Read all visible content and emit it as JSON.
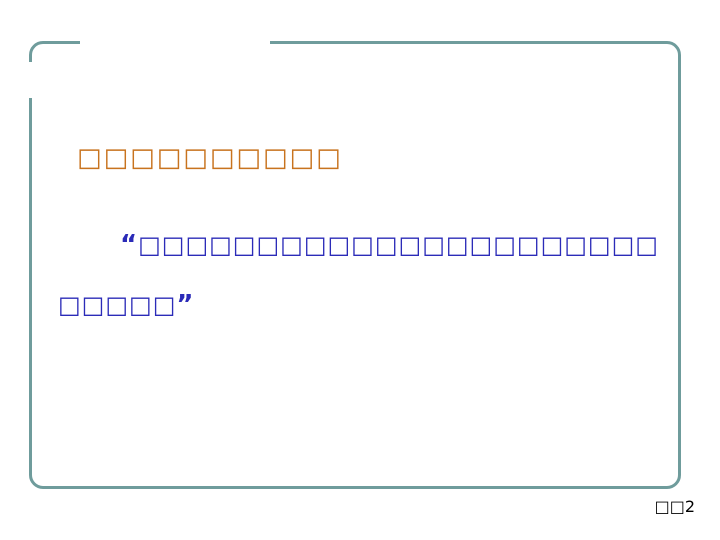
{
  "slide": {
    "heading": "□□□□□□□□□□",
    "quote": {
      "open_mark": "“",
      "line1": "□□□□□□□□□□□□□□□□□□□□□□",
      "line2": "□□□□□",
      "close_mark": "”"
    },
    "page_number": "□□2"
  },
  "colors": {
    "frame_border": "#6f9c9c",
    "heading_text": "#c8731e",
    "quote_text": "#2b2bb8",
    "background": "#ffffff"
  }
}
